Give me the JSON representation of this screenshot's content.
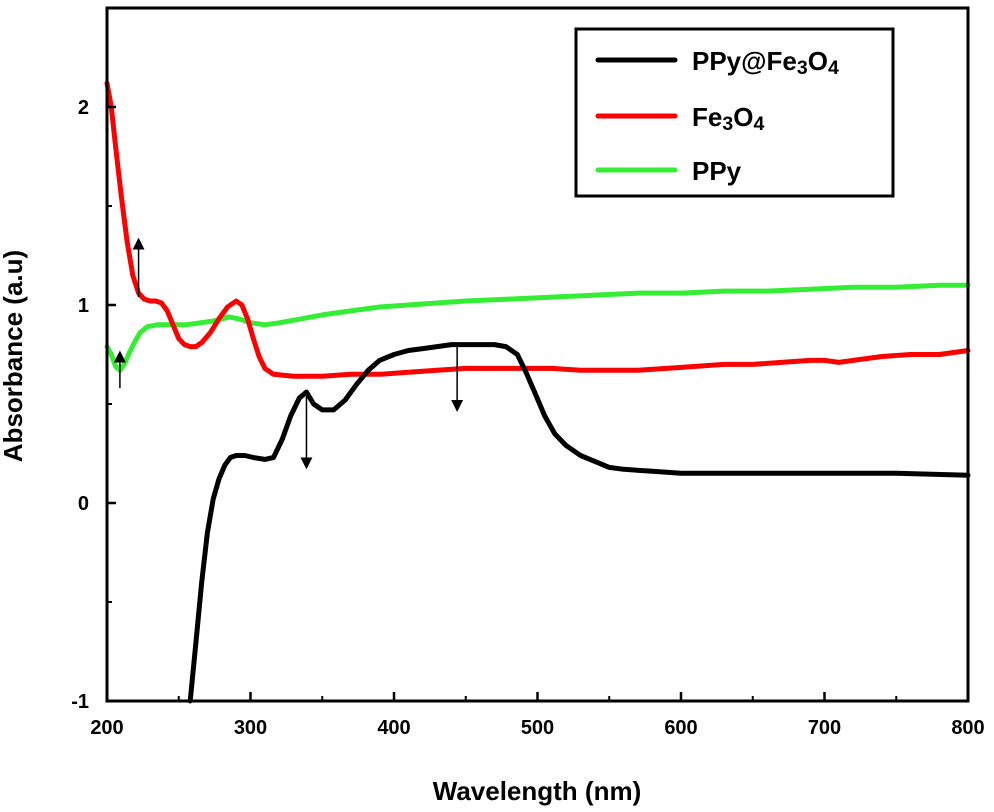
{
  "chart_data": {
    "type": "line",
    "title": "",
    "xlabel": "Wavelength (nm)",
    "ylabel": "Absorbance (a.u)",
    "xlim": [
      200,
      800
    ],
    "ylim": [
      -1,
      2.5
    ],
    "xticks": [
      "200",
      "300",
      "400",
      "500",
      "600",
      "700",
      "800"
    ],
    "yticks": [
      "-1",
      "0",
      "1",
      "2"
    ],
    "legend_position": "top-right",
    "grid": false,
    "series": [
      {
        "name": "PPy@Fe3O4",
        "legend_html": "PPy@Fe<tspan baseline-shift='-22%' font-size='75%'>3</tspan>O<tspan baseline-shift='-22%' font-size='75%'>4</tspan>",
        "color": "#000000",
        "points": [
          [
            258,
            -1.0
          ],
          [
            262,
            -0.7
          ],
          [
            266,
            -0.4
          ],
          [
            270,
            -0.15
          ],
          [
            274,
            0.02
          ],
          [
            278,
            0.12
          ],
          [
            282,
            0.19
          ],
          [
            286,
            0.23
          ],
          [
            290,
            0.24
          ],
          [
            296,
            0.24
          ],
          [
            302,
            0.23
          ],
          [
            310,
            0.22
          ],
          [
            316,
            0.23
          ],
          [
            322,
            0.32
          ],
          [
            328,
            0.44
          ],
          [
            334,
            0.53
          ],
          [
            339,
            0.56
          ],
          [
            344,
            0.5
          ],
          [
            350,
            0.47
          ],
          [
            358,
            0.47
          ],
          [
            366,
            0.52
          ],
          [
            374,
            0.6
          ],
          [
            382,
            0.67
          ],
          [
            390,
            0.72
          ],
          [
            400,
            0.75
          ],
          [
            410,
            0.77
          ],
          [
            420,
            0.78
          ],
          [
            430,
            0.79
          ],
          [
            440,
            0.8
          ],
          [
            450,
            0.8
          ],
          [
            460,
            0.8
          ],
          [
            470,
            0.8
          ],
          [
            478,
            0.79
          ],
          [
            486,
            0.75
          ],
          [
            492,
            0.66
          ],
          [
            498,
            0.56
          ],
          [
            505,
            0.44
          ],
          [
            512,
            0.35
          ],
          [
            520,
            0.29
          ],
          [
            530,
            0.24
          ],
          [
            540,
            0.21
          ],
          [
            550,
            0.18
          ],
          [
            560,
            0.17
          ],
          [
            580,
            0.16
          ],
          [
            600,
            0.15
          ],
          [
            620,
            0.15
          ],
          [
            650,
            0.15
          ],
          [
            700,
            0.15
          ],
          [
            750,
            0.15
          ],
          [
            800,
            0.14
          ]
        ]
      },
      {
        "name": "Fe3O4",
        "legend_html": "Fe<tspan baseline-shift='-22%' font-size='75%'>3</tspan>O<tspan baseline-shift='-22%' font-size='75%'>4</tspan>",
        "color": "#ff0000",
        "points": [
          [
            200,
            2.12
          ],
          [
            203,
            2.0
          ],
          [
            206,
            1.8
          ],
          [
            210,
            1.55
          ],
          [
            214,
            1.32
          ],
          [
            218,
            1.15
          ],
          [
            222,
            1.06
          ],
          [
            226,
            1.03
          ],
          [
            230,
            1.02
          ],
          [
            234,
            1.02
          ],
          [
            238,
            1.01
          ],
          [
            242,
            0.97
          ],
          [
            246,
            0.9
          ],
          [
            250,
            0.83
          ],
          [
            254,
            0.8
          ],
          [
            258,
            0.79
          ],
          [
            262,
            0.79
          ],
          [
            266,
            0.81
          ],
          [
            272,
            0.86
          ],
          [
            278,
            0.93
          ],
          [
            284,
            0.99
          ],
          [
            290,
            1.02
          ],
          [
            294,
            1.0
          ],
          [
            298,
            0.93
          ],
          [
            302,
            0.83
          ],
          [
            306,
            0.74
          ],
          [
            310,
            0.68
          ],
          [
            316,
            0.65
          ],
          [
            330,
            0.64
          ],
          [
            350,
            0.64
          ],
          [
            370,
            0.65
          ],
          [
            390,
            0.65
          ],
          [
            410,
            0.66
          ],
          [
            430,
            0.67
          ],
          [
            450,
            0.68
          ],
          [
            470,
            0.68
          ],
          [
            490,
            0.68
          ],
          [
            510,
            0.68
          ],
          [
            530,
            0.67
          ],
          [
            550,
            0.67
          ],
          [
            570,
            0.67
          ],
          [
            590,
            0.68
          ],
          [
            610,
            0.69
          ],
          [
            630,
            0.7
          ],
          [
            650,
            0.7
          ],
          [
            670,
            0.71
          ],
          [
            690,
            0.72
          ],
          [
            700,
            0.72
          ],
          [
            710,
            0.71
          ],
          [
            720,
            0.72
          ],
          [
            740,
            0.74
          ],
          [
            760,
            0.75
          ],
          [
            780,
            0.75
          ],
          [
            800,
            0.77
          ]
        ]
      },
      {
        "name": "PPy",
        "legend_html": "PPy",
        "color": "#33ee33",
        "points": [
          [
            200,
            0.79
          ],
          [
            203,
            0.75
          ],
          [
            206,
            0.69
          ],
          [
            209,
            0.67
          ],
          [
            212,
            0.7
          ],
          [
            215,
            0.75
          ],
          [
            219,
            0.81
          ],
          [
            223,
            0.86
          ],
          [
            228,
            0.89
          ],
          [
            235,
            0.9
          ],
          [
            245,
            0.9
          ],
          [
            255,
            0.9
          ],
          [
            265,
            0.91
          ],
          [
            275,
            0.92
          ],
          [
            285,
            0.94
          ],
          [
            292,
            0.93
          ],
          [
            300,
            0.91
          ],
          [
            310,
            0.9
          ],
          [
            320,
            0.91
          ],
          [
            335,
            0.93
          ],
          [
            350,
            0.95
          ],
          [
            370,
            0.97
          ],
          [
            390,
            0.99
          ],
          [
            410,
            1.0
          ],
          [
            430,
            1.01
          ],
          [
            450,
            1.02
          ],
          [
            480,
            1.03
          ],
          [
            510,
            1.04
          ],
          [
            540,
            1.05
          ],
          [
            570,
            1.06
          ],
          [
            600,
            1.06
          ],
          [
            630,
            1.07
          ],
          [
            660,
            1.07
          ],
          [
            690,
            1.08
          ],
          [
            720,
            1.09
          ],
          [
            750,
            1.09
          ],
          [
            780,
            1.1
          ],
          [
            800,
            1.1
          ]
        ]
      }
    ],
    "annotations": [
      {
        "type": "arrow",
        "x": 209,
        "y_from": 0.58,
        "y_to": 0.74,
        "direction": "up"
      },
      {
        "type": "arrow",
        "x": 222,
        "y_from": 1.04,
        "y_to": 1.31,
        "direction": "up"
      },
      {
        "type": "arrow",
        "x": 339,
        "y_from": 0.56,
        "y_to": 0.2,
        "direction": "down"
      },
      {
        "type": "arrow",
        "x": 444,
        "y_from": 0.8,
        "y_to": 0.49,
        "direction": "down"
      }
    ]
  }
}
